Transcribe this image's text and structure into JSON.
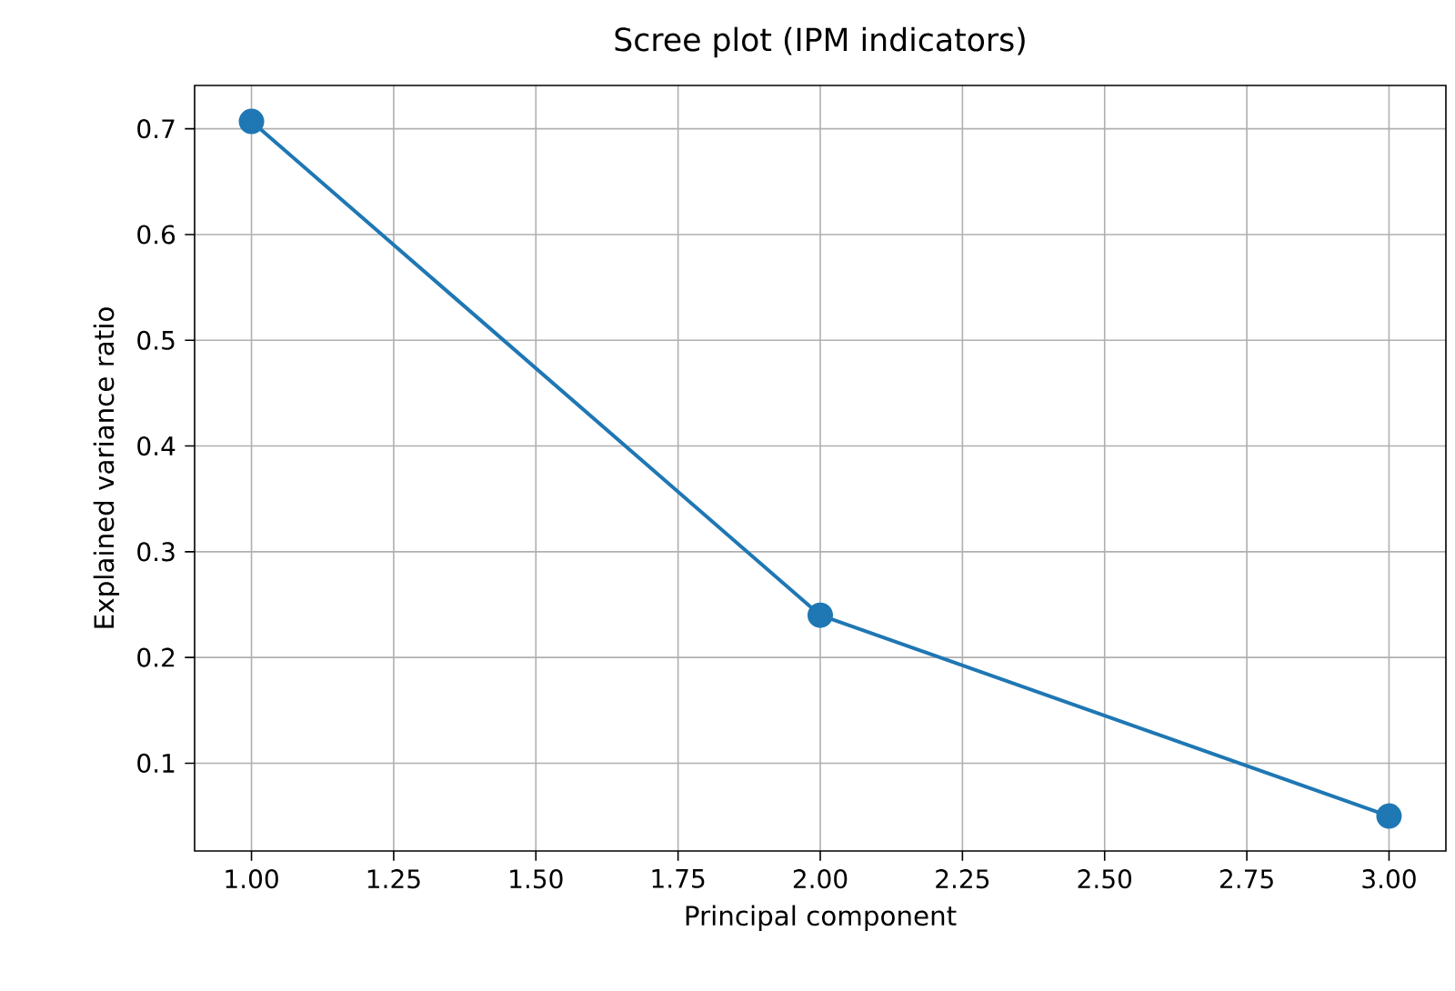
{
  "chart_data": {
    "type": "line",
    "title": "Scree plot (IPM indicators)",
    "xlabel": "Principal component",
    "ylabel": "Explained variance ratio",
    "x": [
      1,
      2,
      3
    ],
    "series": [
      {
        "color": "#1f77b4",
        "values": [
          0.707,
          0.24,
          0.05
        ]
      }
    ],
    "xlim": [
      0.9,
      3.1
    ],
    "ylim": [
      0.017,
      0.741
    ],
    "xticks": [
      {
        "value": 1,
        "label": "1.00"
      },
      {
        "value": 1.25,
        "label": "1.25"
      },
      {
        "value": 1.5,
        "label": "1.50"
      },
      {
        "value": 1.75,
        "label": "1.75"
      },
      {
        "value": 2,
        "label": "2.00"
      },
      {
        "value": 2.25,
        "label": "2.25"
      },
      {
        "value": 2.5,
        "label": "2.50"
      },
      {
        "value": 2.75,
        "label": "2.75"
      },
      {
        "value": 3,
        "label": "3.00"
      }
    ],
    "yticks": [
      0.1,
      0.2,
      0.3,
      0.4,
      0.5,
      0.6,
      0.7
    ],
    "grid": true,
    "marker": "circle",
    "line_style": "solid"
  }
}
